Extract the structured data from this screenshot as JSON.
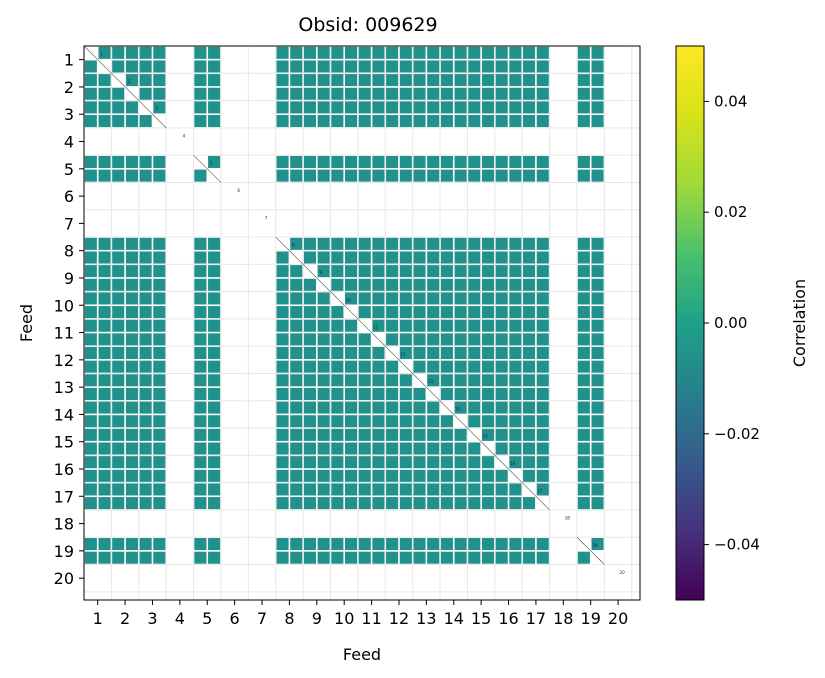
{
  "chart_data": {
    "type": "heatmap",
    "title": "Obsid: 009629",
    "xlabel": "Feed",
    "ylabel": "Feed",
    "x_ticks": [
      "1",
      "2",
      "3",
      "4",
      "5",
      "6",
      "7",
      "8",
      "9",
      "10",
      "11",
      "12",
      "13",
      "14",
      "15",
      "16",
      "17",
      "18",
      "19",
      "20"
    ],
    "y_ticks": [
      "1",
      "2",
      "3",
      "4",
      "5",
      "6",
      "7",
      "8",
      "9",
      "10",
      "11",
      "12",
      "13",
      "14",
      "15",
      "16",
      "17",
      "18",
      "19",
      "20"
    ],
    "active_feeds": [
      1,
      2,
      3,
      5,
      8,
      9,
      10,
      11,
      12,
      13,
      14,
      15,
      16,
      17,
      19
    ],
    "inactive_feeds": [
      4,
      6,
      7,
      18,
      20
    ],
    "cell_value": 0.0,
    "cell_color": "#21918c",
    "diagonal_labels": [
      "1",
      "2",
      "3",
      "4",
      "5",
      "6",
      "7",
      "8",
      "9",
      "10",
      "11",
      "12",
      "13",
      "14",
      "15",
      "16",
      "17",
      "18",
      "19",
      "20"
    ],
    "colorbar": {
      "label": "Correlation",
      "colormap": "viridis",
      "vmin": -0.05,
      "vmax": 0.05,
      "ticks": [
        -0.04,
        -0.02,
        0.0,
        0.02,
        0.04
      ],
      "tick_labels": [
        "−0.04",
        "−0.02",
        "0.00",
        "0.02",
        "0.04"
      ]
    }
  }
}
